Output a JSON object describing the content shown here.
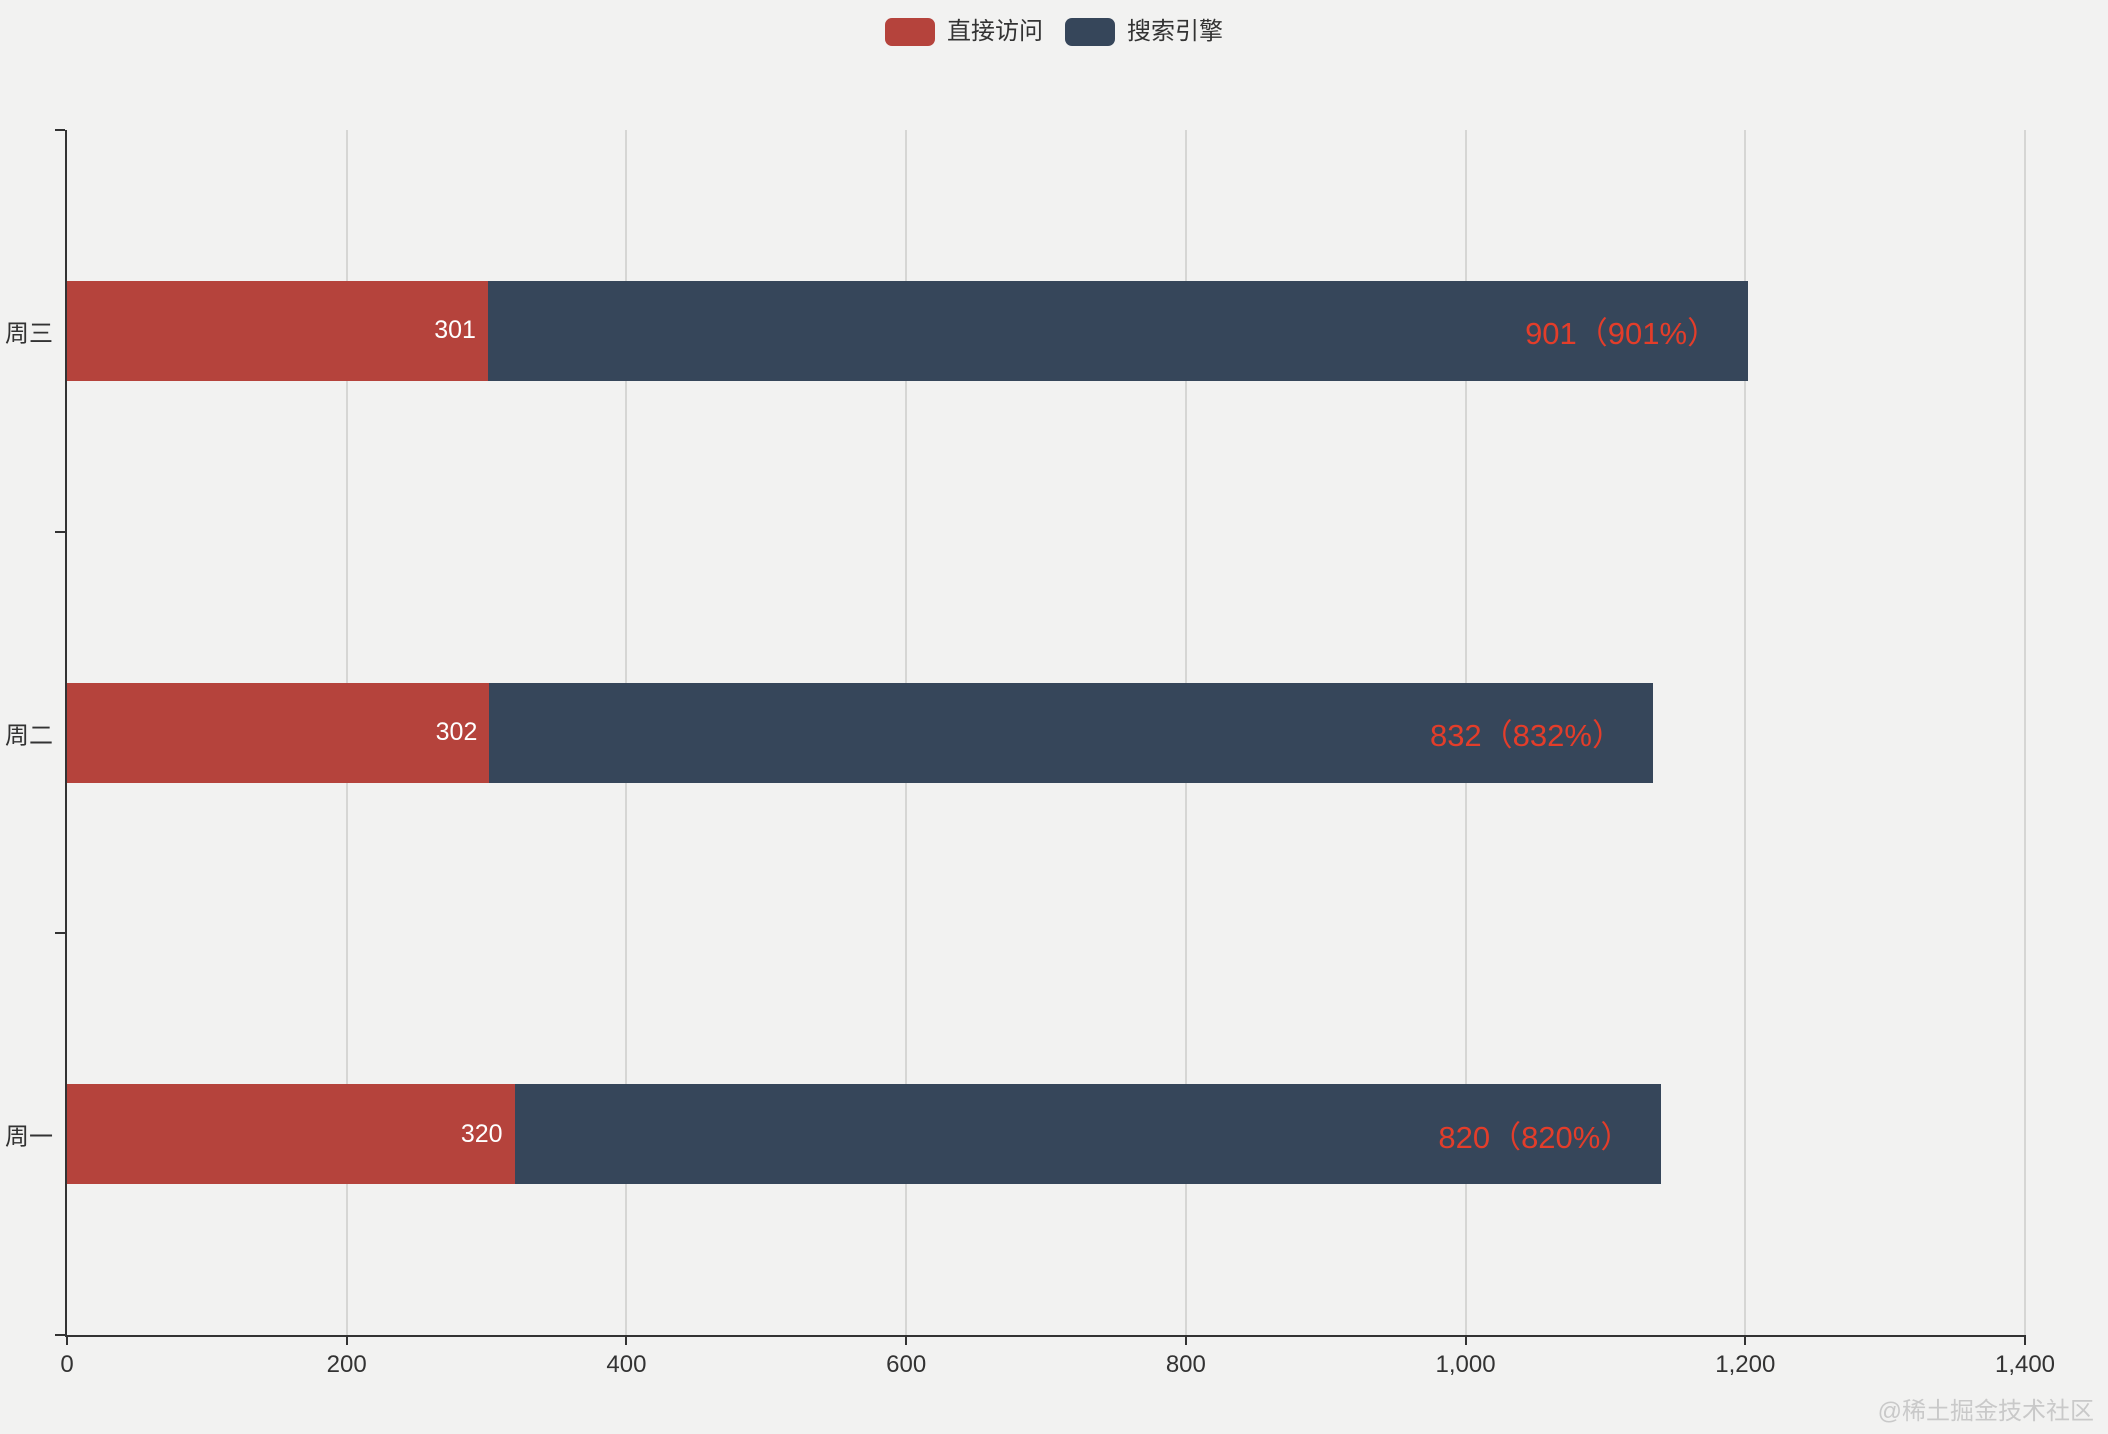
{
  "page": {
    "background": "#f2f2f1",
    "watermark": "@稀土掘金技术社区"
  },
  "legend": {
    "items": [
      {
        "label": "直接访问",
        "color": "#b5433c"
      },
      {
        "label": "搜索引擎",
        "color": "#36465a"
      }
    ]
  },
  "chart_data": {
    "type": "bar",
    "orientation": "horizontal",
    "stacked": true,
    "title": "",
    "xlabel": "",
    "ylabel": "",
    "xlim": [
      0,
      1400
    ],
    "x_tick_values": [
      0,
      200,
      400,
      600,
      800,
      1000,
      1200,
      1400
    ],
    "x_tick_labels": [
      "0",
      "200",
      "400",
      "600",
      "800",
      "1,000",
      "1,200",
      "1,400"
    ],
    "categories": [
      "周一",
      "周二",
      "周三"
    ],
    "display_order_top_to_bottom": [
      "周三",
      "周二",
      "周一"
    ],
    "series": [
      {
        "name": "直接访问",
        "color": "#b5433c",
        "values": [
          320,
          302,
          301
        ],
        "labels": [
          "320",
          "302",
          "301"
        ],
        "label_color": "#ffffff",
        "label_position": "inside-right"
      },
      {
        "name": "搜索引擎",
        "color": "#36465a",
        "values": [
          820,
          832,
          901
        ],
        "labels": [
          "820（820%）",
          "832（832%）",
          "901（901%）"
        ],
        "label_color": "#e33d2a",
        "label_position": "inside-right"
      }
    ],
    "grid": true,
    "legend_position": "top-center",
    "axis_color": "#333333",
    "gridline_color": "#d6d6d4"
  }
}
